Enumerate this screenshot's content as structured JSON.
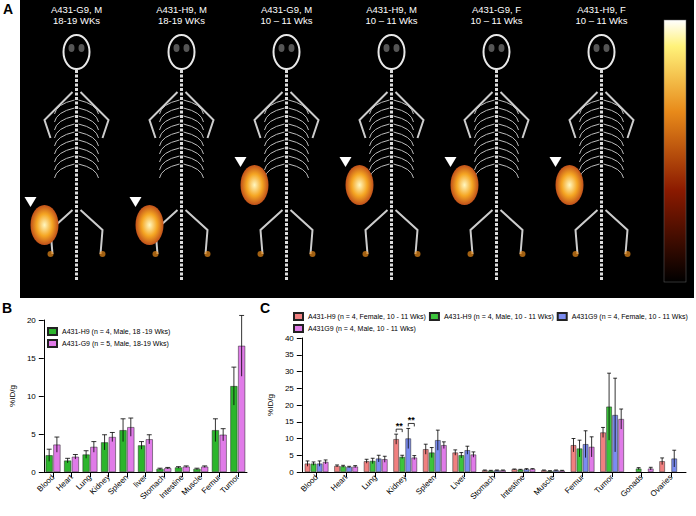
{
  "panel_a": {
    "letter": "A",
    "images": [
      [
        "A431-G9, M",
        "18-19 WKs"
      ],
      [
        "A431-H9, M",
        "18-19 WKs"
      ],
      [
        "A431-G9, M",
        "10 – 11 Wks"
      ],
      [
        "A431-H9, M",
        "10 – 11 Wks"
      ],
      [
        "A431-G9, F",
        "10 – 11 Wks"
      ],
      [
        "A431-H9, F",
        "10 – 11 Wks"
      ]
    ]
  },
  "chart_data": [
    {
      "letter": "B",
      "type": "bar",
      "y_label": "%ID/g",
      "ylim": [
        0,
        20
      ],
      "yticks": [
        0,
        5,
        10,
        15,
        20
      ],
      "grid": false,
      "legend": "top-left",
      "categories": [
        "Blood",
        "Heart",
        "Lung",
        "Kidney",
        "Spleen",
        "liver",
        "Stomach",
        "Intestine",
        "Muscle",
        "Femur",
        "Tumor"
      ],
      "series": [
        {
          "name": "A431-H9 (n = 4, Male, 18 -19 Wks)",
          "color": "#2cb52c",
          "values": [
            2.2,
            1.5,
            2.3,
            3.9,
            5.5,
            3.5,
            0.4,
            0.6,
            0.4,
            5.5,
            11.3
          ],
          "errors": [
            0.8,
            0.3,
            0.5,
            1.0,
            1.5,
            0.5,
            0.1,
            0.1,
            0.1,
            1.5,
            2.5
          ]
        },
        {
          "name": "A431-G9 (n = 5, Male, 18-19 Wks)",
          "color": "#e07be8",
          "values": [
            3.6,
            2.0,
            3.3,
            4.6,
            5.9,
            4.3,
            0.5,
            0.7,
            0.7,
            4.9,
            16.6
          ],
          "errors": [
            1.0,
            0.3,
            0.7,
            0.6,
            1.2,
            0.6,
            0.1,
            0.1,
            0.1,
            0.8,
            4.0
          ]
        }
      ],
      "annotations": []
    },
    {
      "letter": "C",
      "type": "bar",
      "y_label": "%ID/g",
      "ylim": [
        0,
        40
      ],
      "yticks": [
        0,
        5,
        10,
        15,
        20,
        25,
        30,
        35,
        40
      ],
      "grid": false,
      "legend": "top",
      "categories": [
        "Blood",
        "Heart",
        "Lung",
        "Kidney",
        "Spleen",
        "Liver",
        "Stomach",
        "Intestine",
        "Muscle",
        "Femur",
        "Tumor",
        "Gonads",
        "Ovaries"
      ],
      "series": [
        {
          "name": "A431-H9 (n = 4, Female, 10 - 11 Wks)",
          "color": "#f08080",
          "values": [
            2.5,
            1.8,
            3.2,
            9.8,
            6.8,
            5.8,
            0.5,
            0.8,
            0.5,
            8.0,
            11.8,
            null,
            3.2
          ],
          "errors": [
            0.8,
            0.3,
            0.6,
            1.5,
            1.5,
            0.8,
            0.1,
            0.1,
            0.1,
            2.0,
            1.5,
            null,
            1.0
          ]
        },
        {
          "name": "A431-H9 (n = 4, Male, 10 - 11 Wks)",
          "color": "#3cc43c",
          "values": [
            2.5,
            1.7,
            3.3,
            4.5,
            5.8,
            5.0,
            0.4,
            0.7,
            0.3,
            7.0,
            19.5,
            1.0,
            null
          ],
          "errors": [
            0.5,
            0.3,
            0.8,
            0.5,
            1.5,
            0.8,
            0.1,
            0.1,
            0.1,
            2.5,
            10.0,
            0.3,
            null
          ]
        },
        {
          "name": "A431G9 (n = 4, Female, 10 - 11 Wks)",
          "color": "#7b8cf0",
          "values": [
            2.5,
            1.5,
            4.0,
            10.0,
            9.5,
            6.5,
            0.5,
            0.8,
            0.5,
            8.3,
            17.0,
            null,
            4.0
          ],
          "errors": [
            0.8,
            0.2,
            1.0,
            3.0,
            3.0,
            1.2,
            0.1,
            0.2,
            0.1,
            4.0,
            11.0,
            null,
            2.5
          ]
        },
        {
          "name": "A431G9 (n = 4, Male, 10 - 11 Wks)",
          "color": "#e07be8",
          "values": [
            3.0,
            1.6,
            3.8,
            4.3,
            8.0,
            5.2,
            0.5,
            0.9,
            0.4,
            7.5,
            15.8,
            1.0,
            null
          ],
          "errors": [
            0.6,
            0.3,
            0.9,
            0.6,
            1.0,
            0.8,
            0.1,
            0.1,
            0.1,
            3.0,
            3.0,
            0.4,
            null
          ]
        }
      ],
      "annotations": [
        {
          "text": "**",
          "category": "Kidney",
          "between": [
            "A431-H9 (n = 4, Female, 10 - 11 Wks)",
            "A431-H9 (n = 4, Male, 10 - 11 Wks)"
          ]
        },
        {
          "text": "**",
          "category": "Kidney",
          "between": [
            "A431G9 (n = 4, Female, 10 - 11 Wks)",
            "A431G9 (n = 4, Male, 10 - 11 Wks)"
          ]
        }
      ]
    }
  ]
}
